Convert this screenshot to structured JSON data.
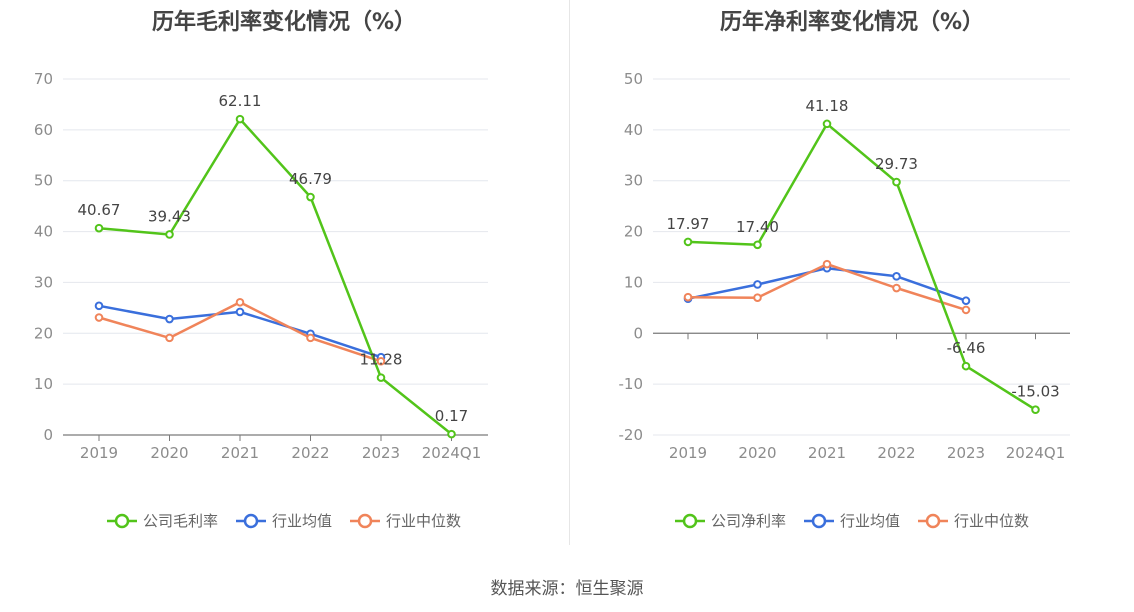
{
  "chart_data": [
    {
      "type": "line",
      "title": "历年毛利率变化情况（%）",
      "categories": [
        "2019",
        "2020",
        "2021",
        "2022",
        "2023",
        "2024Q1"
      ],
      "ylim": [
        0,
        70
      ],
      "yticks": [
        0,
        10,
        20,
        30,
        40,
        50,
        60,
        70
      ],
      "grid": true,
      "legend_position": "bottom",
      "series": [
        {
          "name": "公司毛利率",
          "color": "#52c41a",
          "values": [
            40.67,
            39.43,
            62.11,
            46.79,
            11.28,
            0.17
          ],
          "labels": [
            "40.67",
            "39.43",
            "62.11",
            "46.79",
            "11.28",
            "0.17"
          ]
        },
        {
          "name": "行业均值",
          "color": "#3a6fdc",
          "values": [
            25.4,
            22.8,
            24.2,
            19.9,
            15.3,
            null
          ]
        },
        {
          "name": "行业中位数",
          "color": "#f0845a",
          "values": [
            23.1,
            19.1,
            26.1,
            19.1,
            14.5,
            null
          ]
        }
      ]
    },
    {
      "type": "line",
      "title": "历年净利率变化情况（%）",
      "categories": [
        "2019",
        "2020",
        "2021",
        "2022",
        "2023",
        "2024Q1"
      ],
      "ylim": [
        -20,
        50
      ],
      "yticks": [
        -20,
        -10,
        0,
        10,
        20,
        30,
        40,
        50
      ],
      "grid": true,
      "legend_position": "bottom",
      "series": [
        {
          "name": "公司净利率",
          "color": "#52c41a",
          "values": [
            17.97,
            17.4,
            41.18,
            29.73,
            -6.46,
            -15.03
          ],
          "labels": [
            "17.97",
            "17.40",
            "41.18",
            "29.73",
            "-6.46",
            "-15.03"
          ]
        },
        {
          "name": "行业均值",
          "color": "#3a6fdc",
          "values": [
            6.8,
            9.6,
            12.8,
            11.2,
            6.4,
            null
          ]
        },
        {
          "name": "行业中位数",
          "color": "#f0845a",
          "values": [
            7.1,
            7.0,
            13.6,
            8.9,
            4.6,
            null
          ]
        }
      ]
    }
  ],
  "footer": {
    "source": "数据来源：恒生聚源"
  }
}
